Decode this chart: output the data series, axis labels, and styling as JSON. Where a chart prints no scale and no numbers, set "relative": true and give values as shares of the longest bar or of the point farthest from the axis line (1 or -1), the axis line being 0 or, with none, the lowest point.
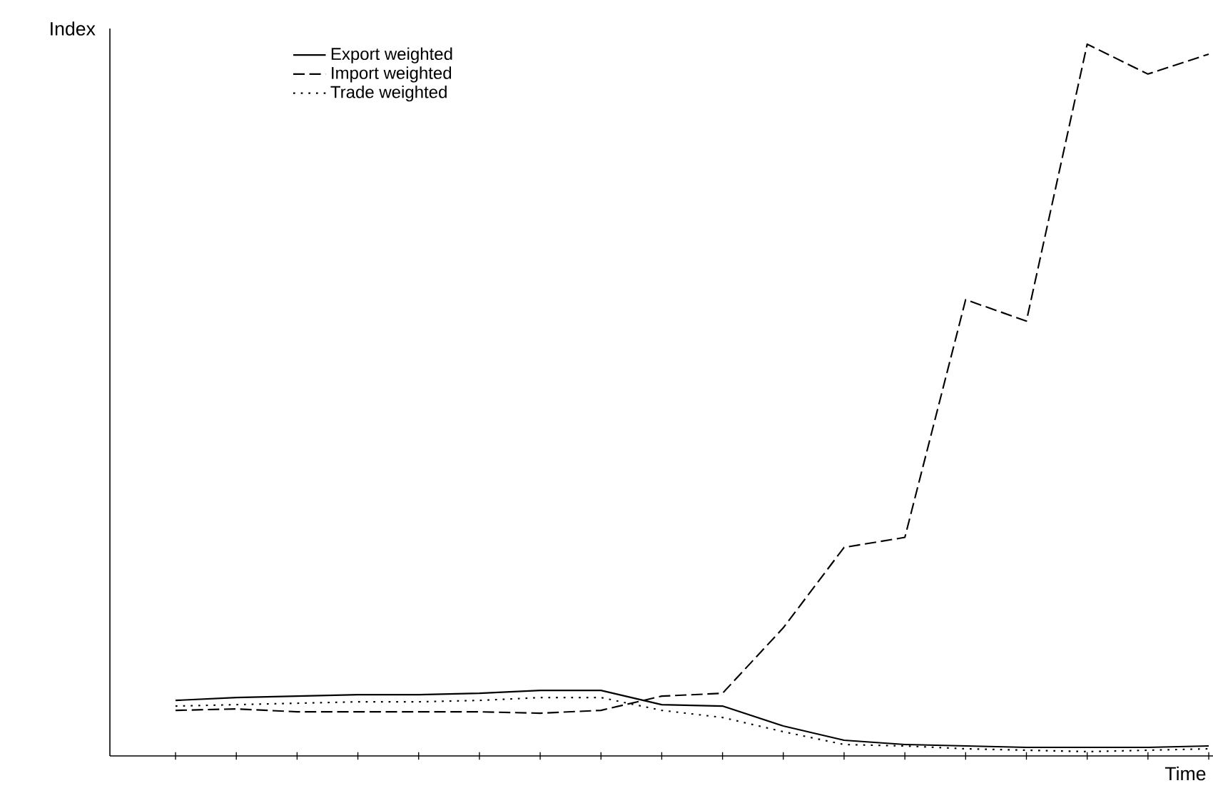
{
  "chart_data": {
    "type": "line",
    "xlabel": "Time",
    "ylabel": "Index",
    "relative": true,
    "legend": "top left",
    "categories": [
      null,
      null,
      null,
      null,
      null,
      null,
      null,
      null,
      null,
      null,
      null,
      null,
      null,
      null,
      null,
      null,
      null,
      null
    ],
    "series": [
      {
        "name": "Export weighted",
        "color": "#000000",
        "line_style": "solid",
        "values": [
          0.078,
          0.082,
          0.084,
          0.086,
          0.086,
          0.088,
          0.092,
          0.092,
          0.072,
          0.07,
          0.042,
          0.022,
          0.016,
          0.014,
          0.012,
          0.012,
          0.012,
          0.014
        ]
      },
      {
        "name": "Import weighted",
        "color": "#000000",
        "line_style": "dashed",
        "values": [
          0.064,
          0.066,
          0.062,
          0.062,
          0.062,
          0.062,
          0.06,
          0.064,
          0.084,
          0.088,
          0.18,
          0.293,
          0.307,
          0.641,
          0.611,
          1,
          0.958,
          0.986
        ]
      },
      {
        "name": "Trade weighted",
        "color": "#000000",
        "line_style": "dotted",
        "values": [
          0.07,
          0.072,
          0.074,
          0.076,
          0.076,
          0.078,
          0.082,
          0.082,
          0.064,
          0.054,
          0.034,
          0.016,
          0.014,
          0.01,
          0.008,
          0.006,
          0.008,
          0.01
        ]
      }
    ]
  }
}
